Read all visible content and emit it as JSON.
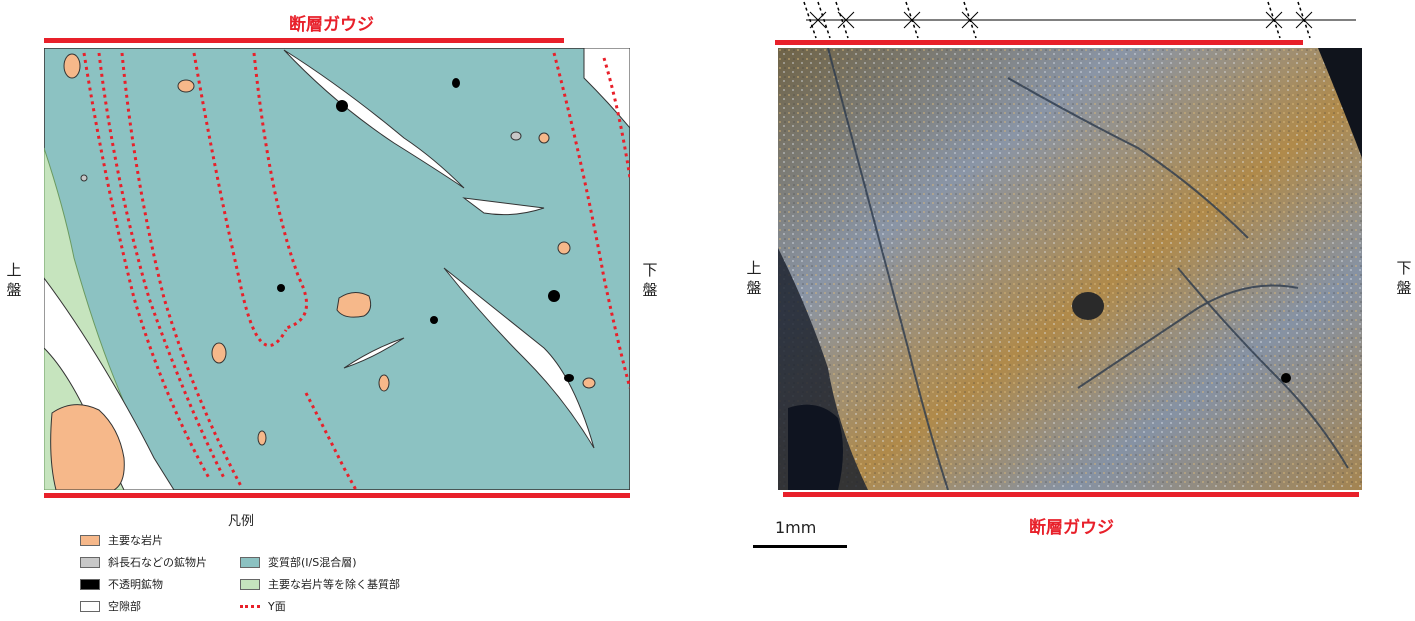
{
  "left_figure": {
    "top_label": "断層ガウジ",
    "hanging_wall_label": "上盤",
    "footwall_label": "下盤",
    "legend": {
      "title": "凡例",
      "items": [
        {
          "label": "主要な岩片",
          "color": "#f6b88a"
        },
        {
          "label": "斜長石などの鉱物片",
          "color": "#c8c8c8"
        },
        {
          "label": "不透明鉱物",
          "color": "#000000"
        },
        {
          "label": "空隙部",
          "color": "#ffffff"
        },
        {
          "label": "変質部(I/S混合層)",
          "color": "#8cc2c2"
        },
        {
          "label": "主要な岩片等を除く基質部",
          "color": "#c6e4be"
        },
        {
          "label": "Y面",
          "color": "#e8202a"
        }
      ]
    }
  },
  "right_figure": {
    "bottom_label": "断層ガウジ",
    "hanging_wall_label": "上盤",
    "footwall_label": "下盤",
    "scale_label": "1mm"
  },
  "colors": {
    "accent_red": "#e8202a",
    "alteration": "#8cc2c2",
    "matrix": "#c6e4be",
    "clast": "#f6b88a"
  }
}
